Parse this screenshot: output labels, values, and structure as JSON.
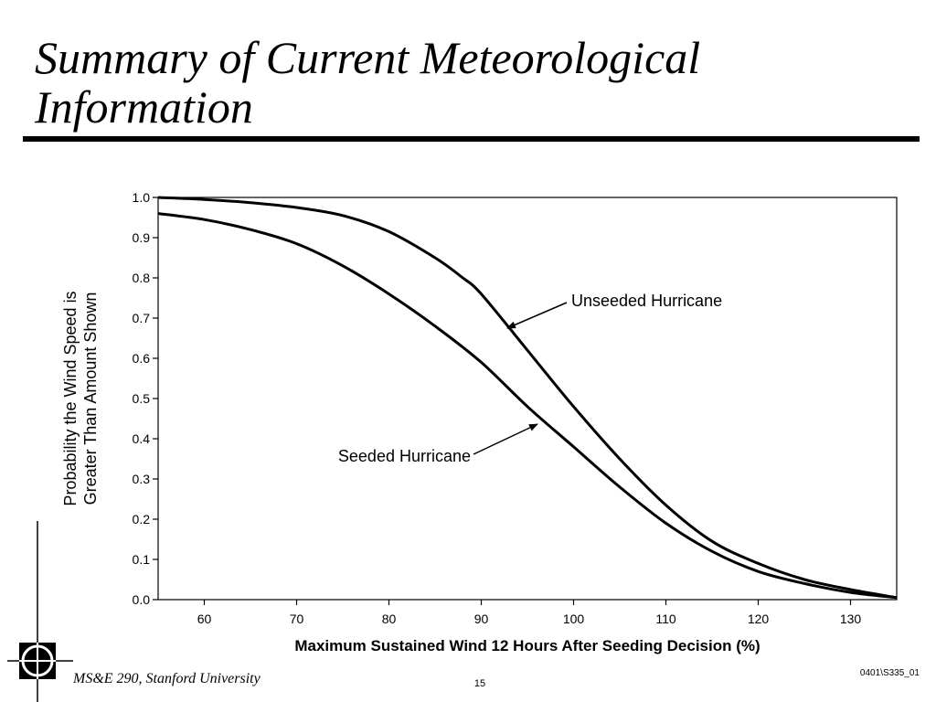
{
  "slide": {
    "title_line1": "Summary of Current Meteorological",
    "title_line2": "Information",
    "footer_left": "MS&E 290, Stanford University",
    "page_number": "15",
    "doc_code": "0401\\S335_01"
  },
  "chart_data": {
    "type": "line",
    "title": "",
    "xlabel": "Maximum Sustained Wind 12 Hours After Seeding Decision (%)",
    "ylabel_lines": [
      "Probability the Wind Speed is",
      "Greater Than Amount Shown"
    ],
    "xlim": [
      55,
      135
    ],
    "ylim": [
      0,
      1
    ],
    "x_ticks": [
      60,
      70,
      80,
      90,
      100,
      110,
      120,
      130
    ],
    "y_ticks": [
      "0.0",
      "0.1",
      "0.2",
      "0.3",
      "0.4",
      "0.5",
      "0.6",
      "0.7",
      "0.8",
      "0.9",
      "1.0"
    ],
    "grid": false,
    "legend": "none",
    "series": [
      {
        "name": "Unseeded Hurricane",
        "x": [
          55,
          60,
          65,
          70,
          75,
          80,
          85,
          88,
          90,
          95,
          100,
          105,
          110,
          115,
          120,
          125,
          130,
          135
        ],
        "y": [
          1.0,
          0.995,
          0.987,
          0.975,
          0.955,
          0.915,
          0.85,
          0.8,
          0.76,
          0.62,
          0.48,
          0.35,
          0.235,
          0.145,
          0.09,
          0.05,
          0.025,
          0.005
        ]
      },
      {
        "name": "Seeded Hurricane",
        "x": [
          55,
          60,
          65,
          70,
          75,
          80,
          85,
          90,
          95,
          100,
          105,
          110,
          115,
          120,
          125,
          130,
          135
        ],
        "y": [
          0.96,
          0.945,
          0.92,
          0.885,
          0.83,
          0.76,
          0.68,
          0.59,
          0.48,
          0.38,
          0.28,
          0.19,
          0.12,
          0.07,
          0.04,
          0.018,
          0.005
        ]
      }
    ],
    "annotations": [
      {
        "text": "Unseeded Hurricane",
        "series": 0
      },
      {
        "text": "Seeded Hurricane",
        "series": 1
      }
    ]
  }
}
